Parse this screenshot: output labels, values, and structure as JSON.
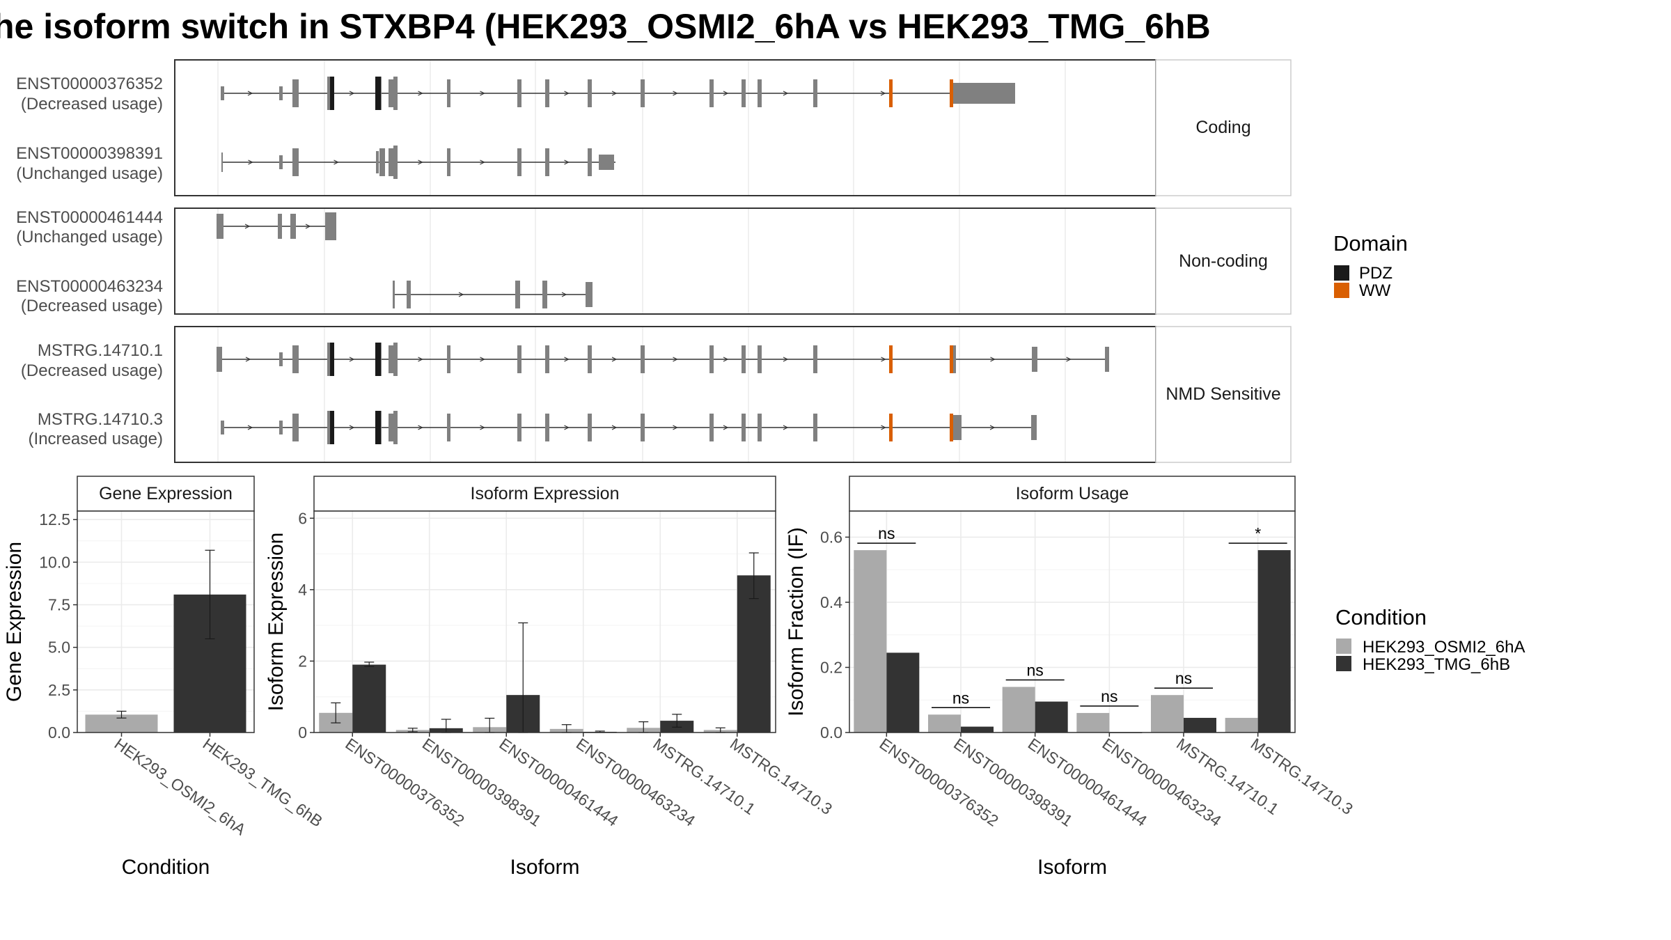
{
  "title": "he isoform switch in STXBP4 (HEK293_OSMI2_6hA vs HEK293_TMG_6hB",
  "colors": {
    "pdz": "#1a1a1a",
    "ww": "#d95f02",
    "exon": "#808080",
    "cond_a": "#aaaaaa",
    "cond_b": "#333333",
    "strip": "#ffffff",
    "grid": "#ebebeb"
  },
  "structure": {
    "groups": [
      {
        "label": "Coding",
        "isoforms": [
          {
            "id": "ENST00000376352",
            "usage": "(Decreased usage)"
          },
          {
            "id": "ENST00000398391",
            "usage": "(Unchanged usage)"
          }
        ]
      },
      {
        "label": "Non-coding",
        "isoforms": [
          {
            "id": "ENST00000461444",
            "usage": "(Unchanged usage)"
          },
          {
            "id": "ENST00000463234",
            "usage": "(Decreased usage)"
          }
        ]
      },
      {
        "label": "NMD Sensitive",
        "isoforms": [
          {
            "id": "MSTRG.14710.1",
            "usage": "(Decreased usage)"
          },
          {
            "id": "MSTRG.14710.3",
            "usage": "(Increased usage)"
          }
        ]
      }
    ]
  },
  "domain_legend": {
    "title": "Domain",
    "items": [
      {
        "label": "PDZ",
        "color": "#1a1a1a"
      },
      {
        "label": "WW",
        "color": "#d95f02"
      }
    ]
  },
  "condition_legend": {
    "title": "Condition",
    "items": [
      {
        "label": "HEK293_OSMI2_6hA",
        "color": "#aaaaaa"
      },
      {
        "label": "HEK293_TMG_6hB",
        "color": "#333333"
      }
    ]
  },
  "chart_data": [
    {
      "type": "bar",
      "title": "Gene Expression",
      "xlabel": "Condition",
      "ylabel": "Gene Expression",
      "categories": [
        "HEK293_OSMI2_6hA",
        "HEK293_TMG_6hB"
      ],
      "values": [
        1.05,
        8.1
      ],
      "errors": [
        [
          0.85,
          1.25
        ],
        [
          5.5,
          10.7
        ]
      ],
      "ylim": [
        0,
        13
      ],
      "yticks": [
        "0.0",
        "2.5",
        "5.0",
        "7.5",
        "10.0",
        "12.5"
      ],
      "grid": true
    },
    {
      "type": "bar",
      "title": "Isoform Expression",
      "xlabel": "Isoform",
      "ylabel": "Isoform Expression",
      "categories": [
        "ENST00000376352",
        "ENST00000398391",
        "ENST00000461444",
        "ENST00000463234",
        "MSTRG.14710.1",
        "MSTRG.14710.3"
      ],
      "series": [
        {
          "name": "HEK293_OSMI2_6hA",
          "values": [
            0.55,
            0.07,
            0.15,
            0.1,
            0.13,
            0.07
          ],
          "errors": [
            [
              0.27,
              0.83
            ],
            [
              0.02,
              0.12
            ],
            [
              0.0,
              0.4
            ],
            [
              0.0,
              0.22
            ],
            [
              0.0,
              0.3
            ],
            [
              0.0,
              0.13
            ]
          ]
        },
        {
          "name": "HEK293_TMG_6hB",
          "values": [
            1.9,
            0.12,
            1.05,
            0.02,
            0.33,
            4.4
          ],
          "errors": [
            [
              1.85,
              1.97
            ],
            [
              0.0,
              0.37
            ],
            [
              0.0,
              3.07
            ],
            [
              0.0,
              0.04
            ],
            [
              0.15,
              0.51
            ],
            [
              3.75,
              5.03
            ]
          ]
        }
      ],
      "ylim": [
        0,
        6.2
      ],
      "yticks": [
        "0",
        "2",
        "4",
        "6"
      ],
      "grid": true
    },
    {
      "type": "bar",
      "title": "Isoform Usage",
      "xlabel": "Isoform",
      "ylabel": "Isoform Fraction (IF)",
      "categories": [
        "ENST00000376352",
        "ENST00000398391",
        "ENST00000461444",
        "ENST00000463234",
        "MSTRG.14710.1",
        "MSTRG.14710.3"
      ],
      "series": [
        {
          "name": "HEK293_OSMI2_6hA",
          "values": [
            0.56,
            0.055,
            0.14,
            0.06,
            0.115,
            0.045
          ]
        },
        {
          "name": "HEK293_TMG_6hB",
          "values": [
            0.245,
            0.018,
            0.095,
            0.0,
            0.045,
            0.56
          ]
        }
      ],
      "significance": [
        "ns",
        "ns",
        "ns",
        "ns",
        "ns",
        "*"
      ],
      "ylim": [
        0,
        0.68
      ],
      "yticks": [
        "0.0",
        "0.2",
        "0.4",
        "0.6"
      ],
      "grid": true
    }
  ]
}
